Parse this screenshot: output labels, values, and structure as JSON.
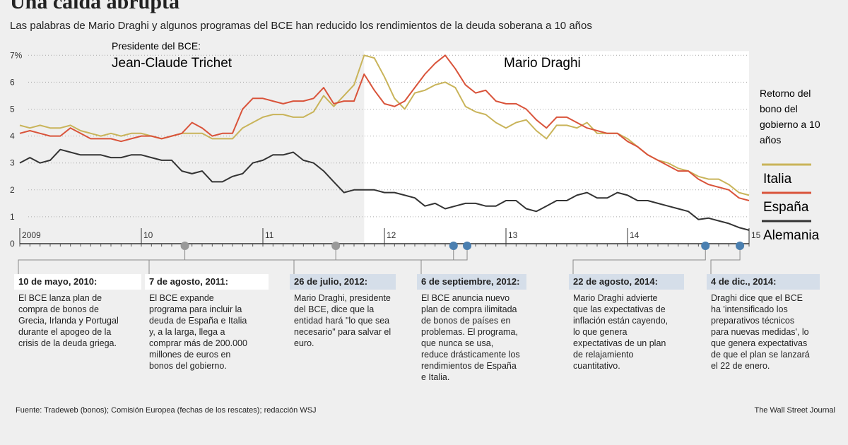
{
  "title": "Una caída abrupta",
  "subtitle": "Las palabras de Mario Draghi y algunos programas del BCE han reducido los rendimientos de la deuda soberana a 10 años",
  "chart_data": {
    "type": "line",
    "ylabel": "",
    "ylim": [
      0,
      7
    ],
    "yticks": [
      "0",
      "1",
      "2",
      "3",
      "4",
      "5",
      "6",
      "7%"
    ],
    "xticks": [
      "2009",
      "10",
      "11",
      "12",
      "13",
      "14",
      "15"
    ],
    "x_start": "2009-01",
    "x_step": "month",
    "president_label": "Presidente del BCE:",
    "periods": [
      {
        "label": "Jean-Claude Trichet"
      },
      {
        "label": "Mario Draghi",
        "start": "2011-11"
      }
    ],
    "legend_title": "Retorno del bono del gobierno a 10 años",
    "series": [
      {
        "name": "Italia",
        "color": "#c9b45a",
        "values": [
          4.4,
          4.3,
          4.4,
          4.3,
          4.3,
          4.4,
          4.2,
          4.1,
          4.0,
          4.1,
          4.0,
          4.1,
          4.1,
          4.0,
          3.9,
          4.0,
          4.1,
          4.1,
          4.1,
          3.9,
          3.9,
          3.9,
          4.3,
          4.5,
          4.7,
          4.8,
          4.8,
          4.7,
          4.7,
          4.9,
          5.5,
          5.1,
          5.5,
          5.9,
          7.0,
          6.9,
          6.2,
          5.4,
          5.0,
          5.6,
          5.7,
          5.9,
          6.0,
          5.8,
          5.1,
          4.9,
          4.8,
          4.5,
          4.3,
          4.5,
          4.6,
          4.2,
          3.9,
          4.4,
          4.4,
          4.3,
          4.5,
          4.1,
          4.1,
          4.1,
          3.9,
          3.6,
          3.3,
          3.1,
          3.0,
          2.8,
          2.7,
          2.5,
          2.4,
          2.4,
          2.2,
          1.9,
          1.8
        ]
      },
      {
        "name": "España",
        "color": "#d9533a",
        "values": [
          4.1,
          4.2,
          4.1,
          4.0,
          4.0,
          4.3,
          4.1,
          3.9,
          3.9,
          3.9,
          3.8,
          3.9,
          4.0,
          4.0,
          3.9,
          4.0,
          4.1,
          4.5,
          4.3,
          4.0,
          4.1,
          4.1,
          5.0,
          5.4,
          5.4,
          5.3,
          5.2,
          5.3,
          5.3,
          5.4,
          5.8,
          5.2,
          5.3,
          5.3,
          6.3,
          5.7,
          5.2,
          5.1,
          5.3,
          5.8,
          6.3,
          6.7,
          7.0,
          6.5,
          5.9,
          5.6,
          5.7,
          5.3,
          5.2,
          5.2,
          5.0,
          4.6,
          4.3,
          4.7,
          4.7,
          4.5,
          4.3,
          4.2,
          4.1,
          4.1,
          3.8,
          3.6,
          3.3,
          3.1,
          2.9,
          2.7,
          2.7,
          2.4,
          2.2,
          2.1,
          2.0,
          1.7,
          1.6
        ]
      },
      {
        "name": "Alemania",
        "color": "#333333",
        "values": [
          3.0,
          3.2,
          3.0,
          3.1,
          3.5,
          3.4,
          3.3,
          3.3,
          3.3,
          3.2,
          3.2,
          3.3,
          3.3,
          3.2,
          3.1,
          3.1,
          2.7,
          2.6,
          2.7,
          2.3,
          2.3,
          2.5,
          2.6,
          3.0,
          3.1,
          3.3,
          3.3,
          3.4,
          3.1,
          3.0,
          2.7,
          2.3,
          1.9,
          2.0,
          2.0,
          2.0,
          1.9,
          1.9,
          1.8,
          1.7,
          1.4,
          1.5,
          1.3,
          1.4,
          1.5,
          1.5,
          1.4,
          1.4,
          1.6,
          1.6,
          1.3,
          1.2,
          1.4,
          1.6,
          1.6,
          1.8,
          1.9,
          1.7,
          1.7,
          1.9,
          1.8,
          1.6,
          1.6,
          1.5,
          1.4,
          1.3,
          1.2,
          0.9,
          0.95,
          0.85,
          0.75,
          0.6,
          0.5
        ]
      }
    ],
    "events": [
      {
        "date": "2010-05-10",
        "color": "#999999",
        "header_bg": "#ffffff",
        "label": "10 de mayo, 2010:",
        "text": "El BCE lanza plan de compra de bonos de Grecia, Irlanda y Portugal durante el apogeo de la crisis de la deuda griega."
      },
      {
        "date": "2011-08-07",
        "color": "#999999",
        "header_bg": "#ffffff",
        "label": "7 de agosto, 2011:",
        "text": "El BCE expande programa para incluir la deuda de España e Italia y, a la larga, llega a comprar más de 200.000 millones de euros en bonos del gobierno."
      },
      {
        "date": "2012-07-26",
        "color": "#4a7fb0",
        "header_bg": "#d5dee9",
        "label": "26 de julio, 2012:",
        "text": "Mario Draghi, presidente del BCE, dice que la entidad hará \"lo que sea necesario\" para salvar el euro."
      },
      {
        "date": "2012-09-06",
        "color": "#4a7fb0",
        "header_bg": "#d5dee9",
        "label": "6 de septiembre, 2012:",
        "text": "El BCE anuncia nuevo plan de compra ilimitada de bonos de países en problemas. El programa, que nunca se usa, reduce drásticamente los rendimientos de España e Italia."
      },
      {
        "date": "2014-08-22",
        "color": "#4a7fb0",
        "header_bg": "#d5dee9",
        "label": "22 de agosto, 2014:",
        "text": "Mario Draghi advierte que las expectativas de inflación están cayendo, lo que genera expectativas de un plan de relajamiento cuantitativo."
      },
      {
        "date": "2014-12-04",
        "color": "#4a7fb0",
        "header_bg": "#d5dee9",
        "label": "4 de dic., 2014:",
        "text": "Draghi dice que el BCE ha 'intensificado los preparativos técnicos para nuevas medidas', lo que genera expectativas de que el plan se lanzará el 22 de enero."
      }
    ]
  },
  "footer": {
    "source": "Fuente: Tradeweb (bonos); Comisión Europea (fechas de los rescates); redacción WSJ",
    "credit": "The Wall Street Journal"
  }
}
